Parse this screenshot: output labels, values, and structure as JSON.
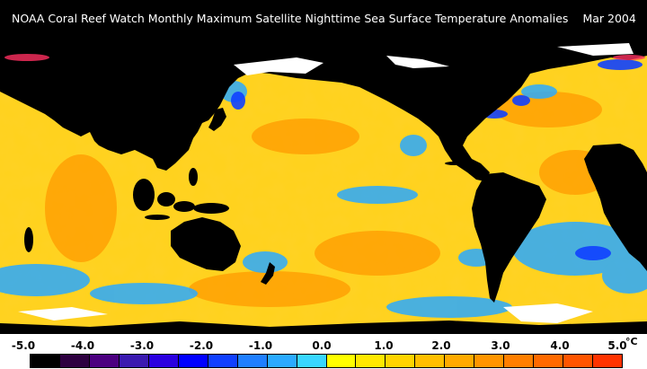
{
  "header": {
    "title": "NOAA Coral Reef Watch Monthly Maximum Satellite Nighttime Sea Surface Temperature Anomalies",
    "date": "Mar 2004"
  },
  "legend": {
    "unit": "°C",
    "ticks": [
      "-5.0",
      "-4.0",
      "-3.0",
      "-2.0",
      "-1.0",
      "0.0",
      "1.0",
      "2.0",
      "3.0",
      "4.0",
      "5.0"
    ],
    "colors": [
      "#000000",
      "#2d0040",
      "#4b0080",
      "#3a1ab0",
      "#2a00e0",
      "#0000ff",
      "#1040ff",
      "#1f7fff",
      "#2aaaff",
      "#38d6ff",
      "#ffff00",
      "#ffe800",
      "#ffd400",
      "#ffbf00",
      "#ffaa00",
      "#ff9500",
      "#ff7f00",
      "#ff6a00",
      "#ff5500",
      "#ff3300"
    ]
  },
  "map": {
    "land_color": "#000000",
    "ice_color": "#ffffff",
    "ocean_base_color": "#ffd21e",
    "cool_anomaly_color": "#2aaaff",
    "warm_anomaly_color": "#ff8c00"
  }
}
